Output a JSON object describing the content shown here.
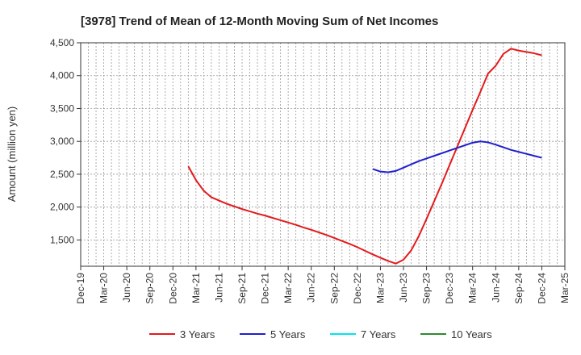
{
  "chart_data": {
    "type": "line",
    "title": "[3978]  Trend of Mean of 12-Month Moving Sum of Net Incomes",
    "xlabel": "",
    "ylabel": "Amount (million yen)",
    "ylim": [
      1100,
      4500
    ],
    "yticks": [
      1500,
      2000,
      2500,
      3000,
      3500,
      4000,
      4500
    ],
    "ytick_labels": [
      "1,500",
      "2,000",
      "2,500",
      "3,000",
      "3,500",
      "4,000",
      "4,500"
    ],
    "x_start": "Dec-19",
    "x_end": "Mar-25",
    "xtick_labels": [
      "Dec-19",
      "Mar-20",
      "Jun-20",
      "Sep-20",
      "Dec-20",
      "Mar-21",
      "Jun-21",
      "Sep-21",
      "Dec-21",
      "Mar-22",
      "Jun-22",
      "Sep-22",
      "Dec-22",
      "Mar-23",
      "Jun-23",
      "Sep-23",
      "Dec-23",
      "Mar-24",
      "Jun-24",
      "Sep-24",
      "Dec-24",
      "Mar-25"
    ],
    "grid": true,
    "legend_position": "bottom",
    "series": [
      {
        "name": "3 Years",
        "color": "#e31a1c",
        "x": [
          "Feb-21",
          "Mar-21",
          "Apr-21",
          "May-21",
          "Jun-21",
          "Jul-21",
          "Aug-21",
          "Sep-21",
          "Oct-21",
          "Nov-21",
          "Dec-21",
          "Jan-22",
          "Feb-22",
          "Mar-22",
          "Apr-22",
          "May-22",
          "Jun-22",
          "Jul-22",
          "Aug-22",
          "Sep-22",
          "Oct-22",
          "Nov-22",
          "Dec-22",
          "Jan-23",
          "Feb-23",
          "Mar-23",
          "Apr-23",
          "May-23",
          "Jun-23",
          "Jul-23",
          "Aug-23",
          "Sep-23",
          "Oct-23",
          "Nov-23",
          "Dec-23",
          "Jan-24",
          "Feb-24",
          "Mar-24",
          "Apr-24",
          "May-24",
          "Jun-24",
          "Jul-24",
          "Aug-24",
          "Sep-24",
          "Oct-24",
          "Nov-24",
          "Dec-24"
        ],
        "values": [
          2620,
          2410,
          2250,
          2150,
          2100,
          2050,
          2010,
          1970,
          1935,
          1900,
          1870,
          1835,
          1800,
          1765,
          1730,
          1690,
          1655,
          1615,
          1575,
          1530,
          1485,
          1440,
          1390,
          1335,
          1280,
          1230,
          1180,
          1140,
          1200,
          1340,
          1560,
          1820,
          2090,
          2360,
          2640,
          2920,
          3200,
          3480,
          3750,
          4030,
          4150,
          4330,
          4410,
          4380,
          4360,
          4340,
          4310
        ]
      },
      {
        "name": "5 Years",
        "color": "#1f1fcf",
        "x": [
          "Feb-23",
          "Mar-23",
          "Apr-23",
          "May-23",
          "Jun-23",
          "Jul-23",
          "Aug-23",
          "Sep-23",
          "Oct-23",
          "Nov-23",
          "Dec-23",
          "Jan-24",
          "Feb-24",
          "Mar-24",
          "Apr-24",
          "May-24",
          "Jun-24",
          "Jul-24",
          "Aug-24",
          "Sep-24",
          "Oct-24",
          "Nov-24",
          "Dec-24"
        ],
        "values": [
          2580,
          2540,
          2530,
          2550,
          2600,
          2650,
          2700,
          2740,
          2780,
          2820,
          2860,
          2900,
          2940,
          2980,
          3000,
          2985,
          2950,
          2910,
          2870,
          2840,
          2810,
          2780,
          2750
        ]
      },
      {
        "name": "7 Years",
        "color": "#00e5ee",
        "x": [],
        "values": []
      },
      {
        "name": "10 Years",
        "color": "#2e8b2e",
        "x": [],
        "values": []
      }
    ]
  }
}
